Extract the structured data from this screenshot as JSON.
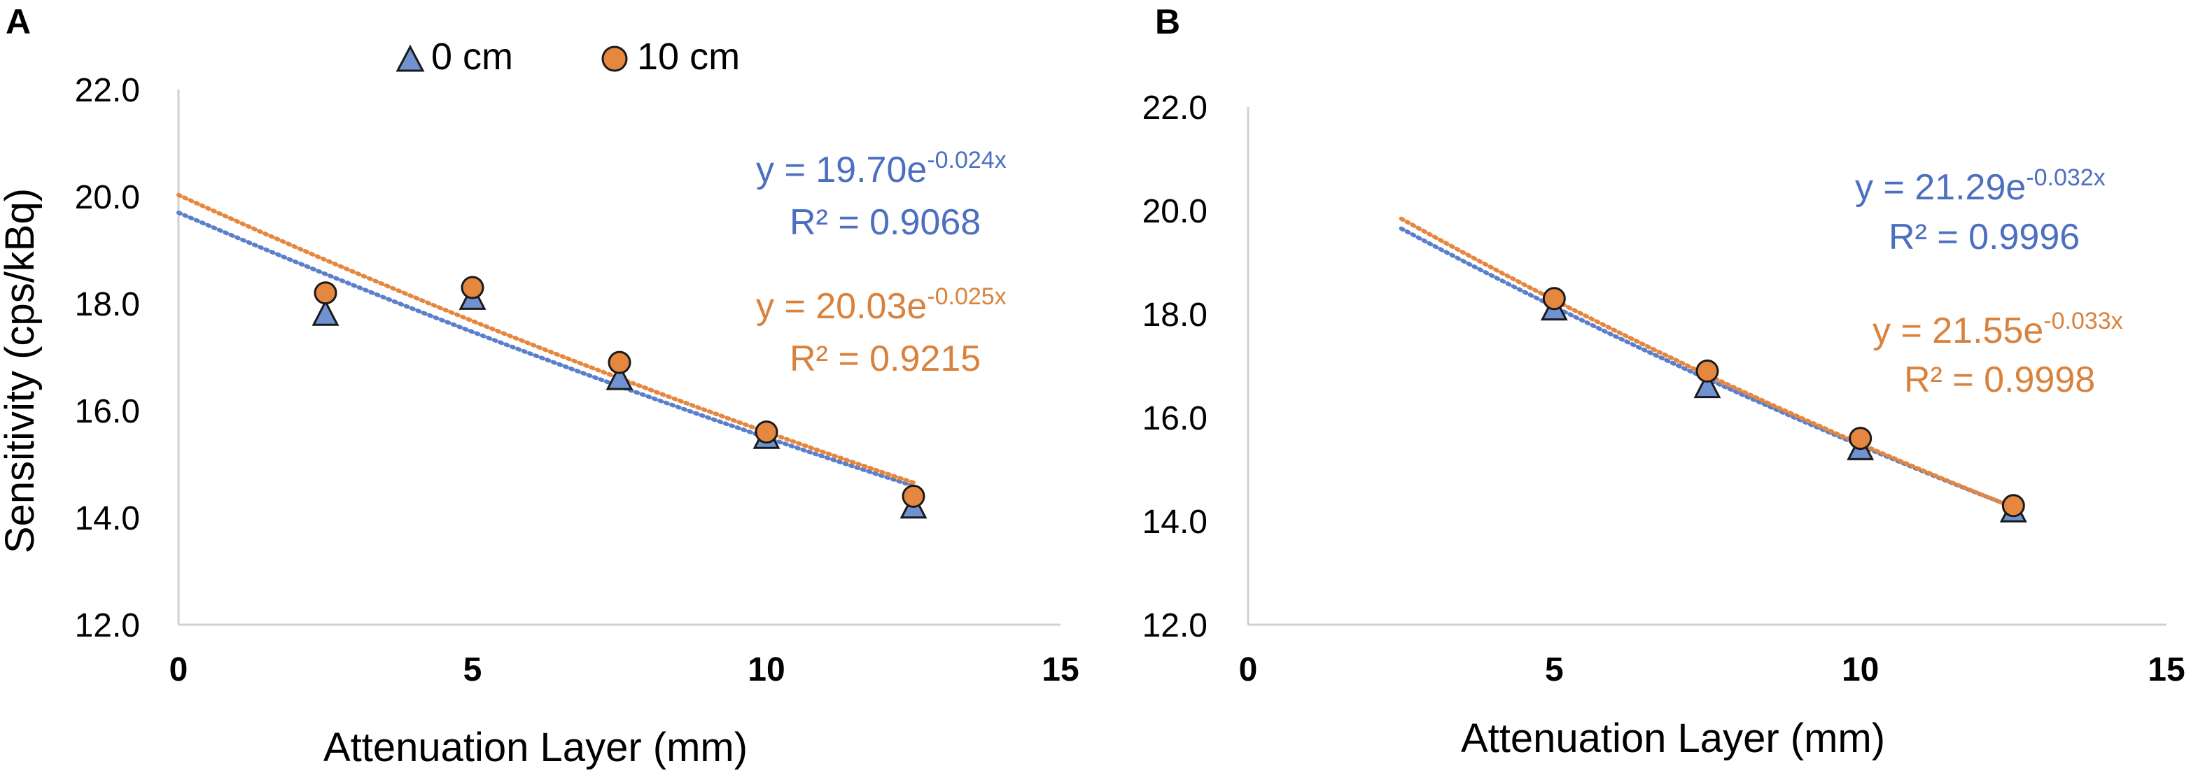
{
  "colors": {
    "series_0cm": "#5b7fcb",
    "series_10cm": "#e5873f",
    "marker_0cm_fill": "#7092d0",
    "marker_10cm_fill": "#e5873f",
    "marker_stroke": "#1a1a1a",
    "eq_0cm_text": "#4d6fc0",
    "eq_10cm_text": "#d9823d",
    "axis": "#d0d0d0",
    "text": "#000000"
  },
  "legend": {
    "items": [
      {
        "label": "0 cm",
        "marker": "triangle-icon",
        "color_key": "series_0cm"
      },
      {
        "label": "10 cm",
        "marker": "circle-icon",
        "color_key": "series_10cm"
      }
    ]
  },
  "chart_data": [
    {
      "panel_label": "A",
      "type": "scatter",
      "xlabel": "Attenuation Layer (mm)",
      "ylabel": "Sensitivity (cps/kBq)",
      "xlim": [
        0,
        15
      ],
      "ylim": [
        12.0,
        22.0
      ],
      "xticks": [
        "0",
        "5",
        "10",
        "15"
      ],
      "yticks": [
        "12.0",
        "14.0",
        "16.0",
        "18.0",
        "20.0",
        "22.0"
      ],
      "grid": false,
      "series": [
        {
          "name": "0 cm",
          "marker": "triangle",
          "x": [
            2.5,
            5,
            7.5,
            10,
            12.5
          ],
          "y": [
            17.8,
            18.1,
            16.6,
            15.5,
            14.2
          ],
          "trendline": {
            "kind": "exponential",
            "a": 19.7,
            "b": -0.024,
            "from": 0,
            "to": 12.5,
            "eq_main": "y = 19.70e",
            "eq_exp": "-0.024x",
            "r2": "R² = 0.9068"
          }
        },
        {
          "name": "10 cm",
          "marker": "circle",
          "x": [
            2.5,
            5,
            7.5,
            10,
            12.5
          ],
          "y": [
            18.2,
            18.3,
            16.9,
            15.6,
            14.4
          ],
          "trendline": {
            "kind": "exponential",
            "a": 20.03,
            "b": -0.025,
            "from": 0,
            "to": 12.5,
            "eq_main": "y = 20.03e",
            "eq_exp": "-0.025x",
            "r2": "R² = 0.9215"
          }
        }
      ]
    },
    {
      "panel_label": "B",
      "type": "scatter",
      "xlabel": "Attenuation Layer (mm)",
      "ylabel": "",
      "xlim": [
        0,
        15
      ],
      "ylim": [
        12.0,
        22.0
      ],
      "xticks": [
        "0",
        "5",
        "10",
        "15"
      ],
      "yticks": [
        "12.0",
        "14.0",
        "16.0",
        "18.0",
        "20.0",
        "22.0"
      ],
      "grid": false,
      "series": [
        {
          "name": "0 cm",
          "marker": "triangle",
          "x": [
            5,
            7.5,
            10,
            12.5
          ],
          "y": [
            18.1,
            16.6,
            15.4,
            14.2
          ],
          "trendline": {
            "kind": "exponential",
            "a": 21.29,
            "b": -0.032,
            "from": 2.5,
            "to": 12.5,
            "eq_main": "y = 21.29e",
            "eq_exp": "-0.032x",
            "r2": "R² = 0.9996"
          }
        },
        {
          "name": "10 cm",
          "marker": "circle",
          "x": [
            5,
            7.5,
            10,
            12.5
          ],
          "y": [
            18.3,
            16.9,
            15.6,
            14.3
          ],
          "trendline": {
            "kind": "exponential",
            "a": 21.55,
            "b": -0.033,
            "from": 2.5,
            "to": 12.5,
            "eq_main": "y = 21.55e",
            "eq_exp": "-0.033x",
            "r2": "R² = 0.9998"
          }
        }
      ]
    }
  ]
}
